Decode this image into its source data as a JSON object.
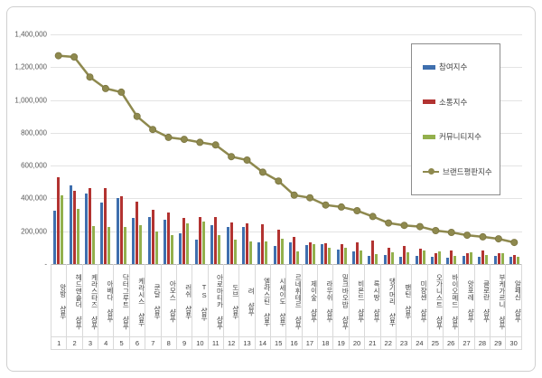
{
  "y_axis": {
    "tick_labels": [
      "1,400,000",
      "1,200,000",
      "1,000,000",
      "800,000",
      "600,000",
      "400,000",
      "200,000",
      "-"
    ]
  },
  "legend": {
    "items": [
      {
        "label": "참여지수",
        "type": "bar",
        "color": "#3f6fae"
      },
      {
        "label": "소통지수",
        "type": "bar",
        "color": "#b23331",
        "swatch_border": "#7f2320"
      },
      {
        "label": "커뮤니티지수",
        "type": "bar",
        "color": "#93b04d"
      },
      {
        "label": "브랜드평판지수",
        "type": "line",
        "color": "#8e894e"
      }
    ]
  },
  "chart_data": {
    "type": "bar",
    "title": "",
    "xlabel": "",
    "ylabel": "",
    "ylim": [
      0,
      1400000
    ],
    "ytick_interval": 200000,
    "grid": true,
    "legend_position": "right-top",
    "categories": [
      "앙방 샴푸",
      "헤드앤숄더 샴푸",
      "케라스타즈 샴푸",
      "아베다 샴푸",
      "닥터그루트 샴푸",
      "케라시스 샴푸",
      "쿤달 샴푸",
      "아모스 샴푸",
      "러쉬 샴푸",
      "TS 샴푸",
      "아로마티카 샴푸",
      "도브 샴푸",
      "려 샴푸",
      "엘라스틴 샴푸",
      "시세이도 샴푸",
      "르네휘테르 샴푸",
      "제이숲 샴푸",
      "라우쉬 샴푸",
      "밀크바오밥 샴푸",
      "비욘드 샴푸",
      "록시땅 샴푸",
      "댕기머리 샴푸",
      "팬틴 샴푸",
      "미쟝센 샴푸",
      "오가니스트 샴푸",
      "바이오메드 샴푸",
      "앙포레 샴푸",
      "클로란 샴푸",
      "부케가르니 샴푸",
      "알페신 샴푸"
    ],
    "ranks": [
      "1",
      "2",
      "3",
      "4",
      "5",
      "6",
      "7",
      "8",
      "9",
      "10",
      "11",
      "12",
      "13",
      "14",
      "15",
      "16",
      "17",
      "18",
      "19",
      "20",
      "21",
      "22",
      "23",
      "24",
      "25",
      "26",
      "27",
      "28",
      "29",
      "30"
    ],
    "series": [
      {
        "name": "참여지수",
        "type": "bar",
        "color": "#3f6fae",
        "values": [
          325000,
          480000,
          430000,
          375000,
          405000,
          280000,
          285000,
          270000,
          190000,
          150000,
          235000,
          225000,
          225000,
          135000,
          112000,
          133000,
          115000,
          119000,
          91000,
          79000,
          50000,
          55000,
          46000,
          51000,
          47000,
          37000,
          51000,
          47000,
          51000,
          42000
        ]
      },
      {
        "name": "소통지수",
        "type": "bar",
        "color": "#b23331",
        "values": [
          530000,
          445000,
          465000,
          465000,
          415000,
          380000,
          330000,
          315000,
          280000,
          285000,
          285000,
          255000,
          247000,
          245000,
          212000,
          164000,
          130000,
          128000,
          124000,
          130000,
          146000,
          102000,
          111000,
          95000,
          69000,
          84000,
          69000,
          84000,
          66000,
          55000
        ]
      },
      {
        "name": "커뮤니티지수",
        "type": "bar",
        "color": "#93b04d",
        "values": [
          420000,
          335000,
          230000,
          225000,
          225000,
          235000,
          200000,
          175000,
          250000,
          260000,
          175000,
          150000,
          137000,
          140000,
          157000,
          79000,
          124000,
          97000,
          102000,
          84000,
          60000,
          70000,
          73000,
          84000,
          79000,
          51000,
          73000,
          55000,
          69000,
          47000
        ]
      },
      {
        "name": "브랜드평판지수",
        "type": "line",
        "color": "#8e894e",
        "marker_stroke": "#7b7540",
        "values": [
          1270000,
          1262000,
          1140000,
          1070000,
          1048000,
          900000,
          820000,
          772000,
          760000,
          742000,
          726000,
          655000,
          634000,
          560000,
          506000,
          420000,
          404000,
          360000,
          348000,
          325000,
          290000,
          250000,
          236000,
          228000,
          204000,
          193000,
          176000,
          166000,
          154000,
          132000
        ]
      }
    ]
  }
}
